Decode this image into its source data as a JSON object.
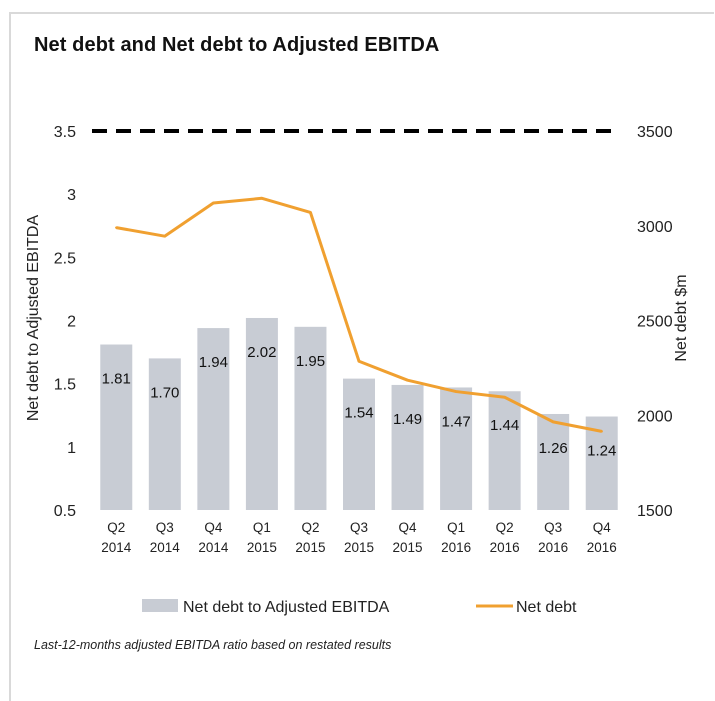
{
  "title": "Net debt and Net debt to Adjusted  EBITDA",
  "footnote": "Last-12-months  adjusted EBITDA ratio based on restated results",
  "colors": {
    "bar": "#c8ccd4",
    "line": "#f0a030",
    "threshold": "#000000"
  },
  "chart_data": {
    "type": "bar",
    "title": "Net debt and Net debt to Adjusted  EBITDA",
    "categories": [
      [
        "Q2",
        "2014"
      ],
      [
        "Q3",
        "2014"
      ],
      [
        "Q4",
        "2014"
      ],
      [
        "Q1",
        "2015"
      ],
      [
        "Q2",
        "2015"
      ],
      [
        "Q3",
        "2015"
      ],
      [
        "Q4",
        "2015"
      ],
      [
        "Q1",
        "2016"
      ],
      [
        "Q2",
        "2016"
      ],
      [
        "Q3",
        "2016"
      ],
      [
        "Q4",
        "2016"
      ]
    ],
    "series": [
      {
        "name": "Net debt to Adjusted EBITDA",
        "type": "bar",
        "axis": "left",
        "values": [
          1.81,
          1.7,
          1.94,
          2.02,
          1.95,
          1.54,
          1.49,
          1.47,
          1.44,
          1.26,
          1.24
        ],
        "labels": [
          "1.81",
          "1.70",
          "1.94",
          "2.02",
          "1.95",
          "1.54",
          "1.49",
          "1.47",
          "1.44",
          "1.26",
          "1.24"
        ]
      },
      {
        "name": "Net debt",
        "type": "line",
        "axis": "right",
        "values": [
          2990,
          2945,
          3120,
          3145,
          3070,
          2285,
          2185,
          2125,
          2095,
          1965,
          1915
        ]
      }
    ],
    "threshold": {
      "axis": "left",
      "value": 3.5,
      "style": "dashed"
    },
    "y_left": {
      "label": "Net debt to Adjusted  EBITDA",
      "lim": [
        0.5,
        3.5
      ],
      "ticks": [
        0.5,
        1,
        1.5,
        2,
        2.5,
        3,
        3.5
      ],
      "tick_labels": [
        "0.5",
        "1",
        "1.5",
        "2",
        "2.5",
        "3",
        "3.5"
      ]
    },
    "y_right": {
      "label": "Net debt $m",
      "lim": [
        1500,
        3500
      ],
      "ticks": [
        1500,
        2000,
        2500,
        3000,
        3500
      ],
      "tick_labels": [
        "1500",
        "2000",
        "2500",
        "3000",
        "3500"
      ]
    },
    "legend": {
      "position": "bottom"
    },
    "grid": false
  }
}
